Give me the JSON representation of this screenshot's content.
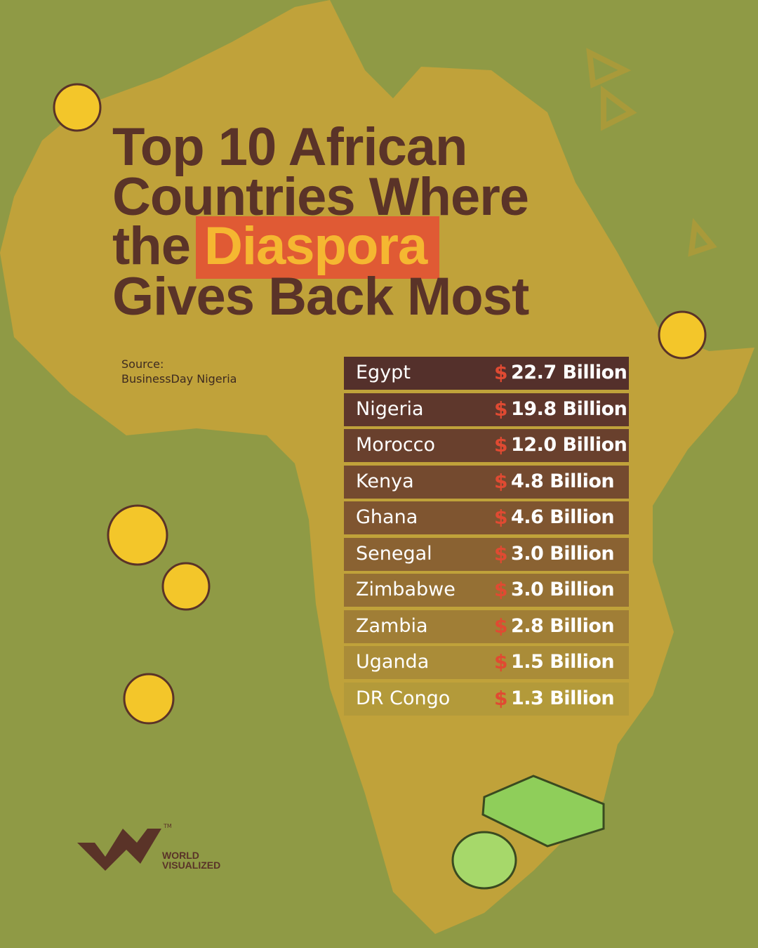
{
  "header": {
    "title": {
      "line1": "Top 10 African",
      "line2": "Countries Where",
      "line3": "the",
      "highlight": "Diaspora",
      "line4": "Gives Back Most"
    }
  },
  "source": {
    "label": "Source:",
    "name": "BusinessDay Nigeria"
  },
  "table": {
    "rows": [
      {
        "country": "Egypt",
        "currency": "$",
        "amount": "22.7 Billion"
      },
      {
        "country": "Nigeria",
        "currency": "$",
        "amount": "19.8 Billion"
      },
      {
        "country": "Morocco",
        "currency": "$",
        "amount": "12.0 Billion"
      },
      {
        "country": "Kenya",
        "currency": "$",
        "amount": "4.8 Billion"
      },
      {
        "country": "Ghana",
        "currency": "$",
        "amount": "4.6 Billion"
      },
      {
        "country": "Senegal",
        "currency": "$",
        "amount": "3.0 Billion"
      },
      {
        "country": "Zimbabwe",
        "currency": "$",
        "amount": "3.0 Billion"
      },
      {
        "country": "Zambia",
        "currency": "$",
        "amount": "2.8 Billion"
      },
      {
        "country": "Uganda",
        "currency": "$",
        "amount": "1.5 Billion"
      },
      {
        "country": "DR Congo",
        "currency": "$",
        "amount": "1.3 Billion"
      }
    ]
  },
  "logo": {
    "line1": "WORLD",
    "line2": "VISUALIZED",
    "tm": "TM"
  }
}
